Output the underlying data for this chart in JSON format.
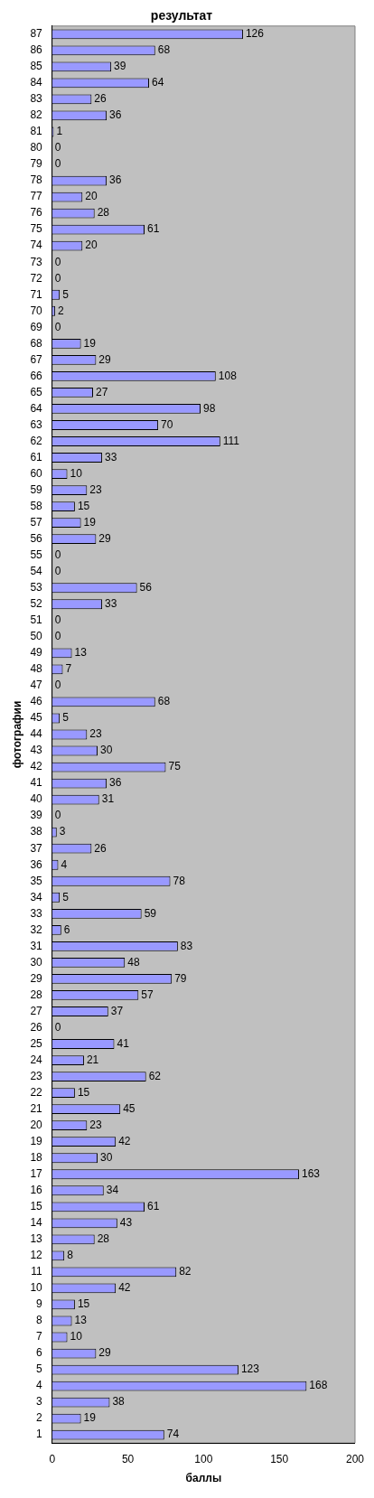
{
  "chart_data": {
    "type": "bar",
    "orientation": "horizontal",
    "title": "результат",
    "xlabel": "баллы",
    "ylabel": "фотографии",
    "categories": [
      "87",
      "86",
      "85",
      "84",
      "83",
      "82",
      "81",
      "80",
      "79",
      "78",
      "77",
      "76",
      "75",
      "74",
      "73",
      "72",
      "71",
      "70",
      "69",
      "68",
      "67",
      "66",
      "65",
      "64",
      "63",
      "62",
      "61",
      "60",
      "59",
      "58",
      "57",
      "56",
      "55",
      "54",
      "53",
      "52",
      "51",
      "50",
      "49",
      "48",
      "47",
      "46",
      "45",
      "44",
      "43",
      "42",
      "41",
      "40",
      "39",
      "38",
      "37",
      "36",
      "35",
      "34",
      "33",
      "32",
      "31",
      "30",
      "29",
      "28",
      "27",
      "26",
      "25",
      "24",
      "23",
      "22",
      "21",
      "20",
      "19",
      "18",
      "17",
      "16",
      "15",
      "14",
      "13",
      "12",
      "11",
      "10",
      "9",
      "8",
      "7",
      "6",
      "5",
      "4",
      "3",
      "2",
      "1"
    ],
    "values": [
      126,
      68,
      39,
      64,
      26,
      36,
      1,
      0,
      0,
      36,
      20,
      28,
      61,
      20,
      0,
      0,
      5,
      2,
      0,
      19,
      29,
      108,
      27,
      98,
      70,
      111,
      33,
      10,
      23,
      15,
      19,
      29,
      0,
      0,
      56,
      33,
      0,
      0,
      13,
      7,
      0,
      68,
      5,
      23,
      30,
      75,
      36,
      31,
      0,
      3,
      26,
      4,
      78,
      5,
      59,
      6,
      83,
      48,
      79,
      57,
      37,
      0,
      41,
      21,
      62,
      15,
      45,
      23,
      42,
      30,
      163,
      34,
      61,
      43,
      28,
      8,
      82,
      42,
      15,
      13,
      10,
      29,
      123,
      168,
      38,
      19,
      74
    ],
    "color": "#9999ff",
    "xlim": [
      0,
      200
    ],
    "xticks": [
      0,
      50,
      100,
      150,
      200
    ],
    "grid": false,
    "legend": false,
    "data_labels": true
  }
}
